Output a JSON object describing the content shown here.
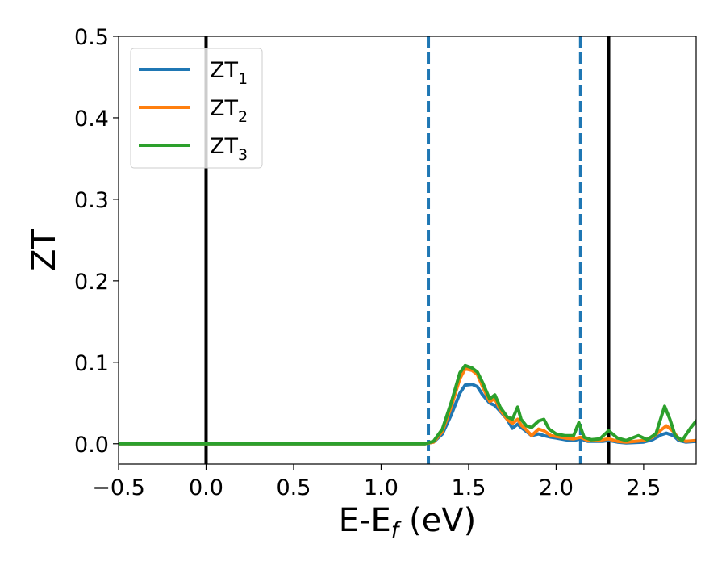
{
  "chart_data": {
    "type": "line",
    "xlabel": "E-E",
    "xlabel_sub": "f",
    "xlabel_unit": " (eV)",
    "ylabel": "ZT",
    "xlim": [
      -0.5,
      2.8
    ],
    "ylim": [
      -0.025,
      0.5
    ],
    "xticks": [
      -0.5,
      0.0,
      0.5,
      1.0,
      1.5,
      2.0,
      2.5
    ],
    "xtick_labels": [
      "−0.5",
      "0.0",
      "0.5",
      "1.0",
      "1.5",
      "2.0",
      "2.5"
    ],
    "yticks": [
      0.0,
      0.1,
      0.2,
      0.3,
      0.4,
      0.5
    ],
    "ytick_labels": [
      "0.0",
      "0.1",
      "0.2",
      "0.3",
      "0.4",
      "0.5"
    ],
    "grid": false,
    "legend_position": "top-left",
    "vertical_lines": [
      {
        "x": 0.0,
        "style": "solid",
        "color": "#000000"
      },
      {
        "x": 1.27,
        "style": "dashed",
        "color": "#1f77b4"
      },
      {
        "x": 2.14,
        "style": "dashed",
        "color": "#1f77b4"
      },
      {
        "x": 2.3,
        "style": "solid",
        "color": "#000000"
      }
    ],
    "series": [
      {
        "name": "ZT",
        "name_sub": "1",
        "color": "#1f77b4",
        "points": [
          [
            -0.5,
            0
          ],
          [
            1.25,
            0
          ],
          [
            1.3,
            0.002
          ],
          [
            1.35,
            0.012
          ],
          [
            1.4,
            0.035
          ],
          [
            1.45,
            0.062
          ],
          [
            1.48,
            0.072
          ],
          [
            1.52,
            0.073
          ],
          [
            1.55,
            0.07
          ],
          [
            1.58,
            0.06
          ],
          [
            1.62,
            0.05
          ],
          [
            1.65,
            0.047
          ],
          [
            1.68,
            0.04
          ],
          [
            1.72,
            0.03
          ],
          [
            1.75,
            0.019
          ],
          [
            1.78,
            0.024
          ],
          [
            1.8,
            0.02
          ],
          [
            1.83,
            0.015
          ],
          [
            1.86,
            0.01
          ],
          [
            1.9,
            0.012
          ],
          [
            1.93,
            0.01
          ],
          [
            1.97,
            0.008
          ],
          [
            2.0,
            0.007
          ],
          [
            2.05,
            0.005
          ],
          [
            2.1,
            0.004
          ],
          [
            2.14,
            0.006
          ],
          [
            2.18,
            0.003
          ],
          [
            2.22,
            0.003
          ],
          [
            2.27,
            0.003
          ],
          [
            2.3,
            0.004
          ],
          [
            2.35,
            0.002
          ],
          [
            2.4,
            0.001
          ],
          [
            2.5,
            0.002
          ],
          [
            2.55,
            0.005
          ],
          [
            2.6,
            0.011
          ],
          [
            2.63,
            0.013
          ],
          [
            2.67,
            0.01
          ],
          [
            2.7,
            0.004
          ],
          [
            2.74,
            0.002
          ],
          [
            2.8,
            0.003
          ]
        ]
      },
      {
        "name": "ZT",
        "name_sub": "2",
        "color": "#ff7f0e",
        "points": [
          [
            -0.5,
            0
          ],
          [
            1.25,
            0
          ],
          [
            1.3,
            0.002
          ],
          [
            1.35,
            0.015
          ],
          [
            1.4,
            0.045
          ],
          [
            1.45,
            0.08
          ],
          [
            1.48,
            0.092
          ],
          [
            1.52,
            0.09
          ],
          [
            1.55,
            0.085
          ],
          [
            1.58,
            0.07
          ],
          [
            1.62,
            0.052
          ],
          [
            1.65,
            0.055
          ],
          [
            1.68,
            0.042
          ],
          [
            1.72,
            0.03
          ],
          [
            1.75,
            0.025
          ],
          [
            1.78,
            0.03
          ],
          [
            1.8,
            0.023
          ],
          [
            1.83,
            0.017
          ],
          [
            1.86,
            0.01
          ],
          [
            1.9,
            0.018
          ],
          [
            1.93,
            0.016
          ],
          [
            1.97,
            0.01
          ],
          [
            2.0,
            0.009
          ],
          [
            2.05,
            0.007
          ],
          [
            2.1,
            0.006
          ],
          [
            2.14,
            0.008
          ],
          [
            2.18,
            0.004
          ],
          [
            2.22,
            0.004
          ],
          [
            2.27,
            0.005
          ],
          [
            2.3,
            0.006
          ],
          [
            2.35,
            0.003
          ],
          [
            2.4,
            0.002
          ],
          [
            2.5,
            0.004
          ],
          [
            2.55,
            0.008
          ],
          [
            2.6,
            0.017
          ],
          [
            2.63,
            0.022
          ],
          [
            2.67,
            0.015
          ],
          [
            2.7,
            0.006
          ],
          [
            2.74,
            0.003
          ],
          [
            2.8,
            0.004
          ]
        ]
      },
      {
        "name": "ZT",
        "name_sub": "3",
        "color": "#2ca02c",
        "points": [
          [
            -0.5,
            0
          ],
          [
            1.25,
            0
          ],
          [
            1.3,
            0.003
          ],
          [
            1.35,
            0.018
          ],
          [
            1.4,
            0.05
          ],
          [
            1.45,
            0.087
          ],
          [
            1.48,
            0.096
          ],
          [
            1.52,
            0.093
          ],
          [
            1.55,
            0.088
          ],
          [
            1.58,
            0.075
          ],
          [
            1.62,
            0.055
          ],
          [
            1.65,
            0.06
          ],
          [
            1.68,
            0.045
          ],
          [
            1.72,
            0.033
          ],
          [
            1.75,
            0.03
          ],
          [
            1.78,
            0.045
          ],
          [
            1.8,
            0.03
          ],
          [
            1.83,
            0.022
          ],
          [
            1.86,
            0.02
          ],
          [
            1.9,
            0.028
          ],
          [
            1.93,
            0.03
          ],
          [
            1.96,
            0.018
          ],
          [
            2.0,
            0.012
          ],
          [
            2.05,
            0.01
          ],
          [
            2.1,
            0.01
          ],
          [
            2.13,
            0.026
          ],
          [
            2.16,
            0.008
          ],
          [
            2.2,
            0.005
          ],
          [
            2.25,
            0.006
          ],
          [
            2.3,
            0.016
          ],
          [
            2.35,
            0.007
          ],
          [
            2.4,
            0.004
          ],
          [
            2.47,
            0.01
          ],
          [
            2.52,
            0.005
          ],
          [
            2.57,
            0.012
          ],
          [
            2.62,
            0.046
          ],
          [
            2.65,
            0.03
          ],
          [
            2.68,
            0.01
          ],
          [
            2.72,
            0.004
          ],
          [
            2.77,
            0.02
          ],
          [
            2.8,
            0.028
          ]
        ]
      }
    ]
  }
}
